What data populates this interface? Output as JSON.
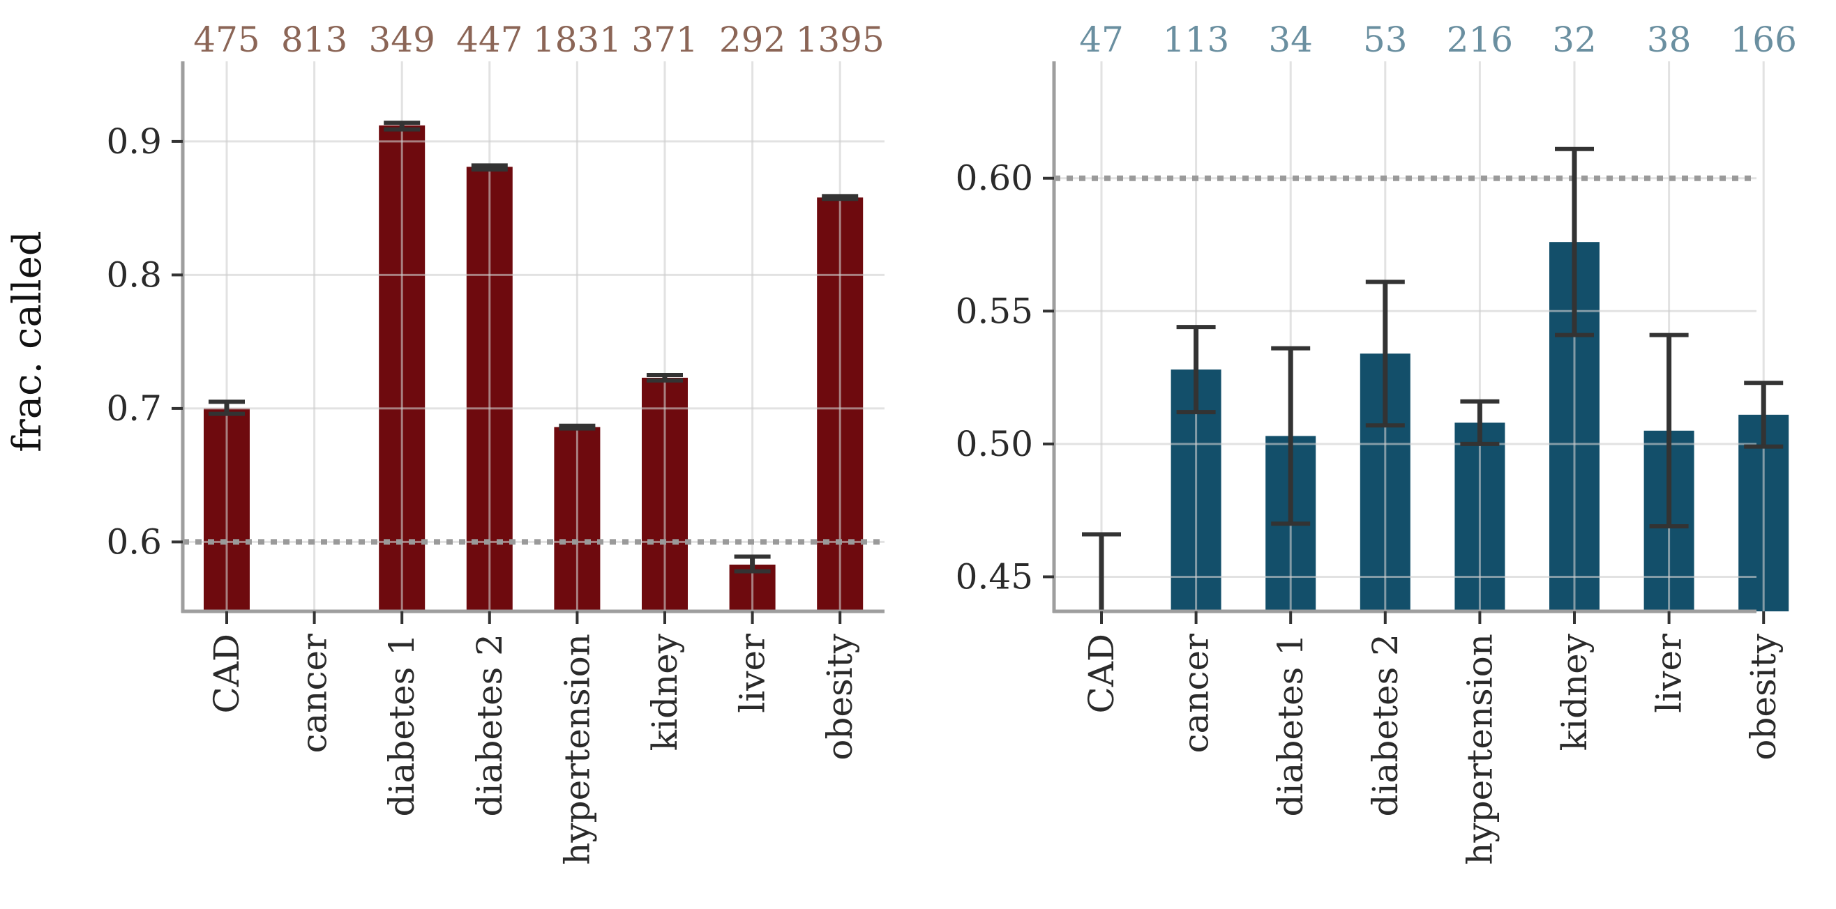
{
  "chart_data": [
    {
      "type": "bar",
      "panel": "left",
      "ylabel": "frac. called",
      "categories": [
        "CAD",
        "cancer",
        "diabetes 1",
        "diabetes 2",
        "hypertension",
        "kidney",
        "liver",
        "obesity"
      ],
      "counts": [
        "475",
        "813",
        "349",
        "447",
        "1831",
        "371",
        "292",
        "1395"
      ],
      "values": [
        0.7,
        0.548,
        0.912,
        0.881,
        0.686,
        0.723,
        0.583,
        0.858
      ],
      "err_low": [
        0.696,
        0.548,
        0.909,
        0.879,
        0.685,
        0.721,
        0.578,
        0.857
      ],
      "err_high": [
        0.705,
        0.548,
        0.914,
        0.882,
        0.687,
        0.725,
        0.589,
        0.859
      ],
      "ylim": [
        0.548,
        0.96
      ],
      "yticks": [
        0.6,
        0.7,
        0.8,
        0.9
      ],
      "ytick_labels": [
        "0.6",
        "0.7",
        "0.8",
        "0.9"
      ],
      "reference_line": 0.6,
      "grid": true,
      "bar_color": "#6e0a0e",
      "count_color": "#8b6556"
    },
    {
      "type": "bar",
      "panel": "right",
      "ylabel": "",
      "categories": [
        "CAD",
        "cancer",
        "diabetes 1",
        "diabetes 2",
        "hypertension",
        "kidney",
        "liver",
        "obesity"
      ],
      "counts": [
        "47",
        "113",
        "34",
        "53",
        "216",
        "32",
        "38",
        "166"
      ],
      "values": [
        0.437,
        0.528,
        0.503,
        0.534,
        0.508,
        0.576,
        0.505,
        0.511
      ],
      "err_low": [
        0.437,
        0.512,
        0.47,
        0.507,
        0.5,
        0.541,
        0.469,
        0.499
      ],
      "err_high": [
        0.466,
        0.544,
        0.536,
        0.561,
        0.516,
        0.611,
        0.541,
        0.523
      ],
      "ylim": [
        0.437,
        0.644
      ],
      "yticks": [
        0.45,
        0.5,
        0.55,
        0.6
      ],
      "ytick_labels": [
        "0.45",
        "0.50",
        "0.55",
        "0.60"
      ],
      "reference_line": 0.6,
      "grid": true,
      "bar_color": "#134f6a",
      "count_color": "#6a8fa0"
    }
  ]
}
